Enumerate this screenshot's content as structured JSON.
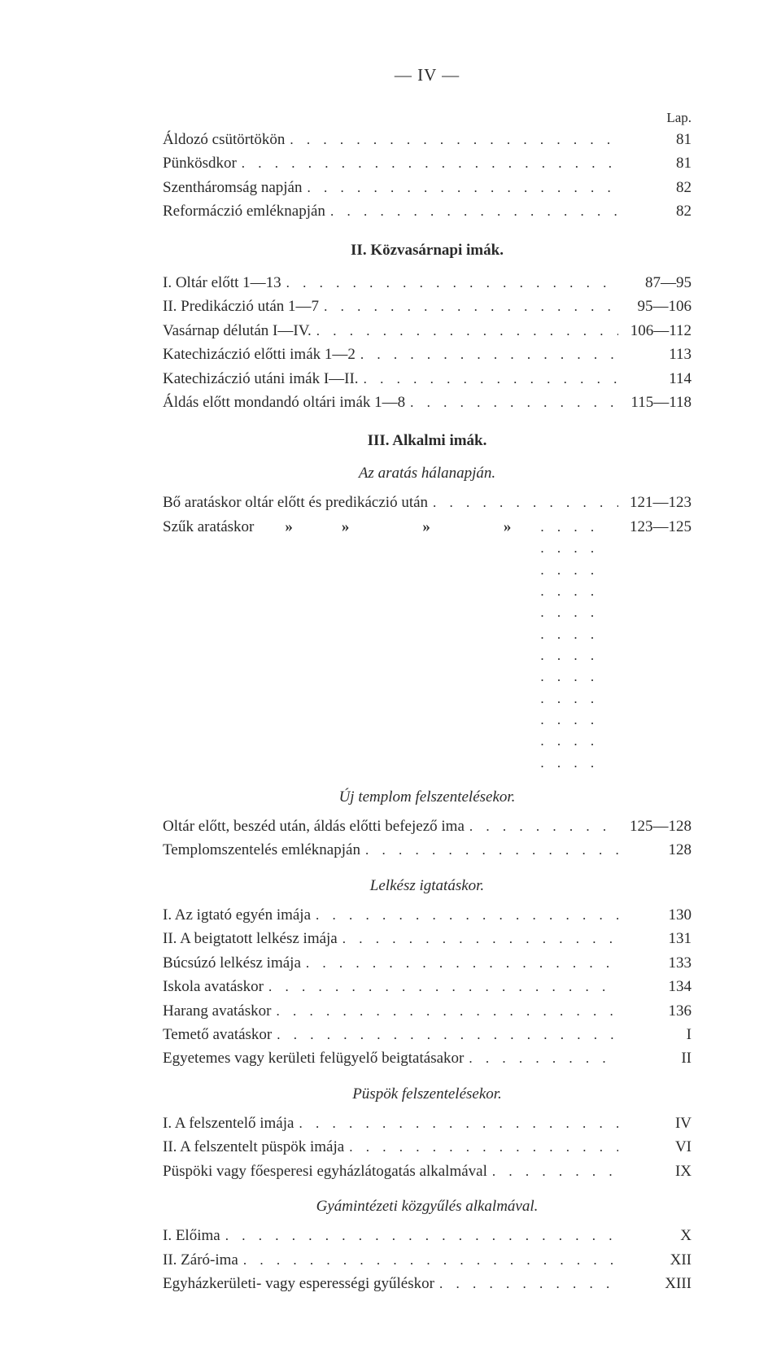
{
  "page_number": "—   IV   —",
  "lap_label": "Lap.",
  "dot_fill": ". . . . . . . . . . . . . . . . . . . . . . . . . . . . . . . . . . . . . . . . . . . . . . . .",
  "top_entries": [
    {
      "label": "Áldozó csütörtökön",
      "page": "81"
    },
    {
      "label": "Pünkösdkor",
      "page": "81"
    },
    {
      "label": "Szentháromság napján",
      "page": "82"
    },
    {
      "label": "Reformáczió emléknapján",
      "page": "82"
    }
  ],
  "section2": {
    "heading": "II. Közvasárnapi imák.",
    "entries": [
      {
        "label": "I. Oltár előtt 1—13",
        "page": "87—95"
      },
      {
        "label": "II. Predikáczió után 1—7",
        "page": "95—106"
      },
      {
        "label": "Vasárnap délután I—IV.",
        "page": "106—112"
      },
      {
        "label": "Katechizáczió előtti imák 1—2",
        "page": "113"
      },
      {
        "label": "Katechizáczió utáni imák I—II.",
        "page": "114"
      },
      {
        "label": "Áldás előtt mondandó oltári imák 1—8",
        "page": "115—118"
      }
    ]
  },
  "section3": {
    "heading": "III. Alkalmi imák.",
    "sub1": {
      "heading": "Az aratás hálanapján.",
      "entry1": {
        "label": "Bő aratáskor oltár előtt és predikáczió után",
        "page": "121—123"
      },
      "ditto": {
        "prefix": "Szűk aratáskor",
        "marks": [
          "»",
          "»",
          "»",
          "»"
        ],
        "page": "123—125"
      }
    },
    "sub2": {
      "heading": "Új templom felszentelésekor.",
      "entries": [
        {
          "label": "Oltár előtt, beszéd után, áldás előtti befejező ima",
          "page": "125—128"
        },
        {
          "label": "Templomszentelés emléknapján",
          "page": "128"
        }
      ]
    },
    "sub3": {
      "heading": "Lelkész igtatáskor.",
      "entries": [
        {
          "label": "I. Az igtató egyén imája",
          "page": "130"
        },
        {
          "label": "II. A beigtatott lelkész imája",
          "page": "131"
        },
        {
          "label": "Búcsúzó lelkész imája",
          "page": "133"
        },
        {
          "label": "Iskola avatáskor",
          "page": "134"
        },
        {
          "label": "Harang avatáskor",
          "page": "136"
        },
        {
          "label": "Temető avatáskor",
          "page": "I"
        },
        {
          "label": "Egyetemes vagy kerületi felügyelő beigtatásakor",
          "page": "II"
        }
      ]
    },
    "sub4": {
      "heading": "Püspök felszentelésekor.",
      "entries": [
        {
          "label": "I. A felszentelő imája",
          "page": "IV"
        },
        {
          "label": "II. A felszentelt püspök imája",
          "page": "VI"
        },
        {
          "label": "Püspöki vagy főesperesi egyházlátogatás alkalmával",
          "page": "IX"
        }
      ]
    },
    "sub5": {
      "heading": "Gyámintézeti közgyűlés alkalmával.",
      "entries": [
        {
          "label": "I. Előima",
          "page": "X"
        },
        {
          "label": "II. Záró-ima",
          "page": "XII"
        },
        {
          "label": "Egyházkerületi- vagy esperességi gyűléskor",
          "page": "XIII"
        }
      ]
    }
  }
}
